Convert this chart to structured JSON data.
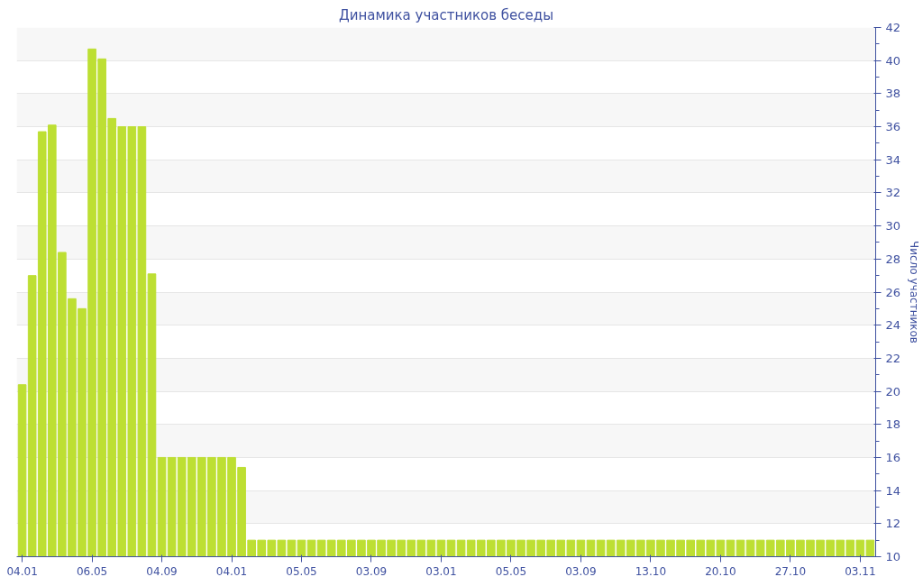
{
  "chart_data": {
    "type": "bar",
    "title": "Динамика участников беседы",
    "y2label": "Число участников",
    "categories": [
      "04.01",
      null,
      null,
      null,
      null,
      null,
      null,
      "06.05",
      null,
      null,
      null,
      null,
      null,
      null,
      "04.09",
      null,
      null,
      null,
      null,
      null,
      null,
      "04.01",
      null,
      null,
      null,
      null,
      null,
      null,
      "05.05",
      null,
      null,
      null,
      null,
      null,
      null,
      "03.09",
      null,
      null,
      null,
      null,
      null,
      null,
      "03.01",
      null,
      null,
      null,
      null,
      null,
      null,
      "05.05",
      null,
      null,
      null,
      null,
      null,
      null,
      "03.09",
      null,
      null,
      null,
      null,
      null,
      null,
      "13.10",
      null,
      null,
      null,
      null,
      null,
      null,
      "20.10",
      null,
      null,
      null,
      null,
      null,
      null,
      "27.10",
      null,
      null,
      null,
      null,
      null,
      null,
      "03.11",
      null
    ],
    "series": [
      {
        "color": "#bddf33",
        "axis": "y2",
        "values": [
          20.4,
          27.0,
          35.7,
          36.1,
          28.4,
          25.6,
          25.0,
          40.7,
          40.1,
          36.5,
          36.0,
          36.0,
          36.0,
          27.1,
          16,
          16,
          16,
          16,
          16,
          16,
          16,
          16,
          15.4,
          11,
          11,
          11,
          11,
          11,
          11,
          11,
          11,
          11,
          11,
          11,
          11,
          11,
          11,
          11,
          11,
          11,
          11,
          11,
          11,
          11,
          11,
          11,
          11,
          11,
          11,
          11,
          11,
          11,
          11,
          11,
          11,
          11,
          11,
          11,
          11,
          11,
          11,
          11,
          11,
          11,
          11,
          11,
          11,
          11,
          11,
          11,
          11,
          11,
          11,
          11,
          11,
          11,
          11,
          11,
          11,
          11,
          11,
          11,
          11,
          11,
          11,
          11
        ]
      }
    ],
    "y2lim": [
      10,
      42
    ],
    "y2ticks": [
      10,
      12,
      14,
      16,
      18,
      20,
      22,
      24,
      26,
      28,
      30,
      32,
      34,
      36,
      38,
      40,
      42
    ],
    "grid": "y",
    "legend": false
  }
}
